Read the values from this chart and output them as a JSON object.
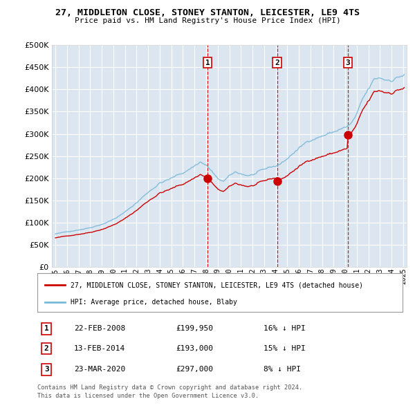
{
  "title": "27, MIDDLETON CLOSE, STONEY STANTON, LEICESTER, LE9 4TS",
  "subtitle": "Price paid vs. HM Land Registry's House Price Index (HPI)",
  "background_color": "#ffffff",
  "plot_bg_color": "#dce6f1",
  "legend_line1": "27, MIDDLETON CLOSE, STONEY STANTON, LEICESTER, LE9 4TS (detached house)",
  "legend_line2": "HPI: Average price, detached house, Blaby",
  "footer1": "Contains HM Land Registry data © Crown copyright and database right 2024.",
  "footer2": "This data is licensed under the Open Government Licence v3.0.",
  "transactions": [
    {
      "num": 1,
      "date": "22-FEB-2008",
      "price": "£199,950",
      "change": "16% ↓ HPI",
      "year": 2008.12
    },
    {
      "num": 2,
      "date": "13-FEB-2014",
      "price": "£193,000",
      "change": "15% ↓ HPI",
      "year": 2014.12
    },
    {
      "num": 3,
      "date": "23-MAR-2020",
      "price": "£297,000",
      "change": "8% ↓ HPI",
      "year": 2020.23
    }
  ],
  "ylim": [
    0,
    500000
  ],
  "xlim": [
    1994.7,
    2025.3
  ],
  "yticks": [
    0,
    50000,
    100000,
    150000,
    200000,
    250000,
    300000,
    350000,
    400000,
    450000,
    500000
  ],
  "hpi_color": "#7ab8d9",
  "price_color": "#cc0000",
  "vline_color": "#cc0000",
  "dot_color": "#cc0000",
  "dot_size": 8
}
